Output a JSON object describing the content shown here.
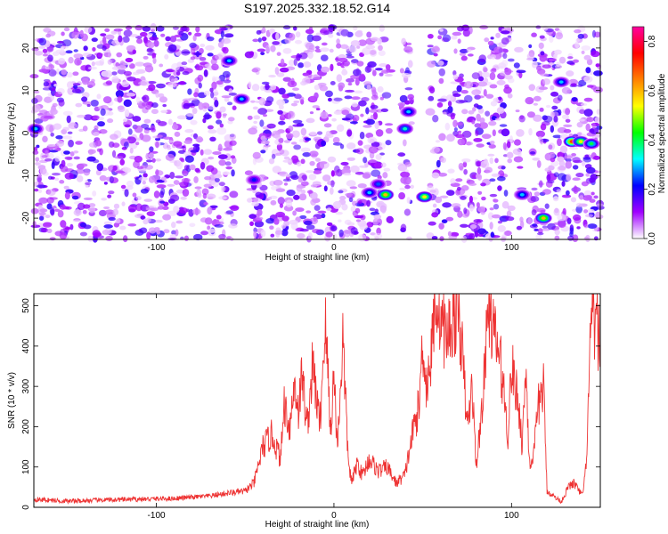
{
  "title": "S197.2025.332.18.52.G14",
  "chart_data": [
    {
      "type": "heatmap",
      "xlabel": "Height of straight line (km)",
      "ylabel": "Frequency (Hz)",
      "xlim": [
        -169,
        150
      ],
      "ylim": [
        -25,
        25
      ],
      "xticks": [
        -100,
        0,
        100
      ],
      "yticks": [
        -20,
        -10,
        0,
        10,
        20
      ],
      "colorbar": {
        "label": "Normalized spectral amplitude",
        "range": [
          0,
          0.86
        ],
        "ticks": [
          "0.0",
          "0.2",
          "0.4",
          "0.6",
          "0.8"
        ],
        "tick_values": [
          0,
          0.2,
          0.4,
          0.6,
          0.8
        ],
        "colors": [
          "#ffffff",
          "#a000ff",
          "#0000ff",
          "#00ffff",
          "#00ff00",
          "#ffff00",
          "#ff8000",
          "#ff0000",
          "#ff00a0"
        ]
      },
      "strong_features": [
        {
          "x": -168,
          "y": 1,
          "amp": 0.3
        },
        {
          "x": -59,
          "y": 17,
          "amp": 0.3
        },
        {
          "x": -52,
          "y": 8,
          "amp": 0.3
        },
        {
          "x": -45,
          "y": -11,
          "amp": 0.22
        },
        {
          "x": 20,
          "y": -14,
          "amp": 0.3
        },
        {
          "x": 25,
          "y": -12,
          "amp": 0.25
        },
        {
          "x": 29,
          "y": -14.5,
          "amp": 0.6
        },
        {
          "x": 40,
          "y": 1,
          "amp": 0.35
        },
        {
          "x": 42,
          "y": 5,
          "amp": 0.3
        },
        {
          "x": 51,
          "y": -15,
          "amp": 0.55
        },
        {
          "x": 106,
          "y": -14.5,
          "amp": 0.3
        },
        {
          "x": 118,
          "y": -20,
          "amp": 0.6
        },
        {
          "x": 128,
          "y": 12,
          "amp": 0.3
        },
        {
          "x": 134,
          "y": -2,
          "amp": 0.7
        },
        {
          "x": 139,
          "y": -2,
          "amp": 0.55
        },
        {
          "x": 145,
          "y": -2.5,
          "amp": 0.4
        }
      ],
      "blank_x_bands": [
        [
          -56,
          -48
        ],
        [
          32,
          38
        ],
        [
          44,
          54
        ],
        [
          100,
          103
        ],
        [
          106,
          110
        ]
      ]
    },
    {
      "type": "line",
      "xlabel": "Height of straight line (km)",
      "ylabel": "SNR (10 * v/v)",
      "xlim": [
        -169,
        150
      ],
      "ylim": [
        0,
        530
      ],
      "xticks": [
        -100,
        0,
        100
      ],
      "yticks": [
        0,
        100,
        200,
        300,
        400,
        500
      ],
      "line_color": "#ee3333",
      "series": [
        {
          "x": [
            -169,
            -150,
            -130,
            -110,
            -90,
            -70,
            -60,
            -50,
            -45,
            -40,
            -35,
            -30,
            -28,
            -25,
            -22,
            -20,
            -18,
            -15,
            -12,
            -10,
            -8,
            -5,
            -3,
            -2,
            0,
            2,
            5,
            8,
            10,
            13,
            16,
            20,
            25,
            30,
            35,
            40,
            42,
            45,
            48,
            50,
            52,
            55,
            57,
            60,
            63,
            66,
            70,
            72,
            75,
            78,
            80,
            82,
            85,
            87,
            90,
            93,
            95,
            98,
            100,
            102,
            104,
            106,
            108,
            110,
            112,
            115,
            118,
            120,
            123,
            126,
            128,
            130,
            132,
            135,
            138,
            140,
            142,
            145,
            147,
            150
          ],
          "y": [
            20,
            15,
            18,
            20,
            22,
            28,
            35,
            40,
            60,
            150,
            180,
            120,
            260,
            200,
            310,
            240,
            330,
            200,
            350,
            280,
            200,
            460,
            300,
            180,
            330,
            150,
            420,
            120,
            60,
            110,
            80,
            120,
            90,
            100,
            60,
            80,
            130,
            200,
            250,
            420,
            300,
            380,
            530,
            480,
            420,
            450,
            500,
            400,
            200,
            300,
            100,
            180,
            340,
            520,
            430,
            380,
            320,
            180,
            350,
            300,
            260,
            150,
            350,
            120,
            100,
            250,
            300,
            40,
            30,
            20,
            15,
            30,
            50,
            60,
            40,
            30,
            100,
            470,
            450,
            420
          ]
        }
      ]
    }
  ]
}
